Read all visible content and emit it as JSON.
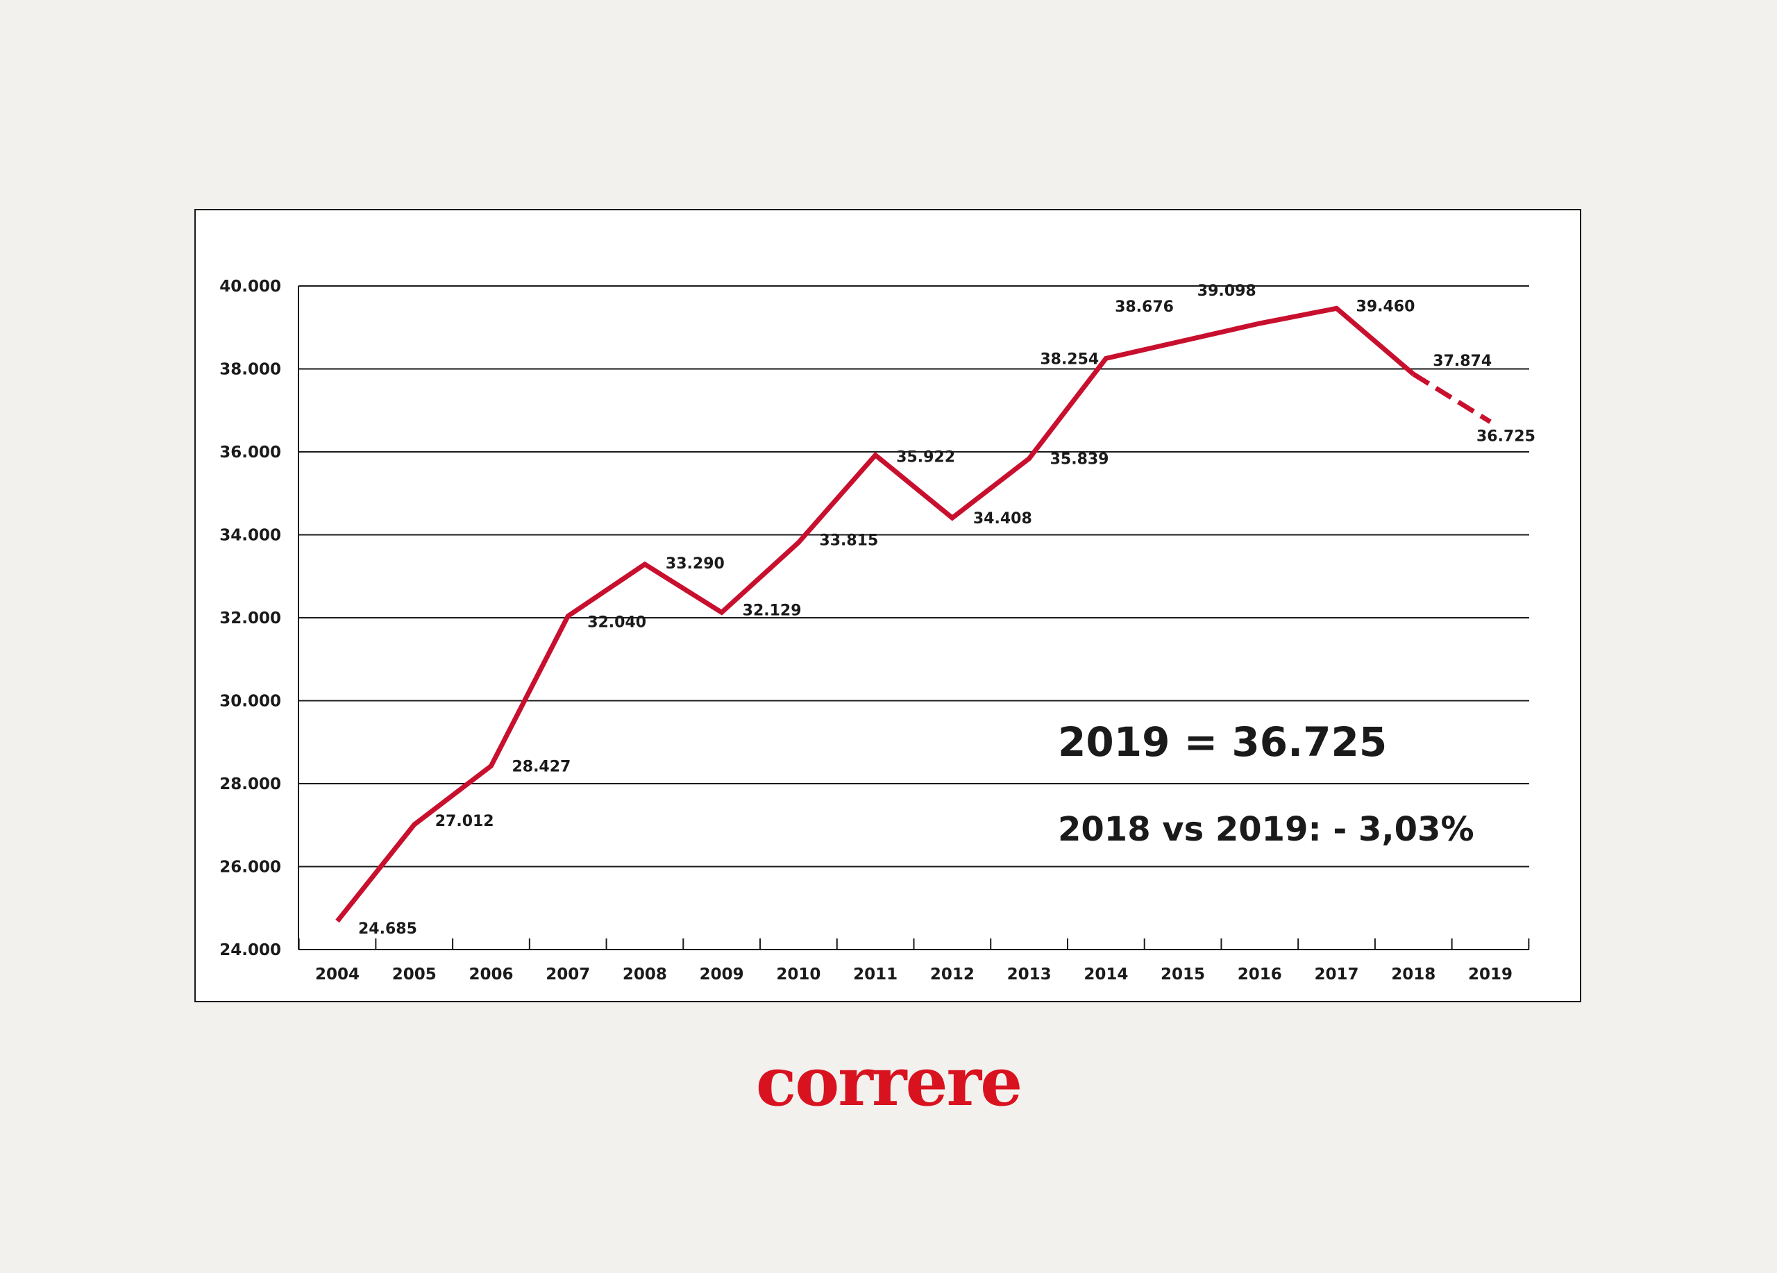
{
  "chart_data": {
    "type": "line",
    "title": "",
    "xlabel": "",
    "ylabel": "",
    "categories": [
      "2004",
      "2005",
      "2006",
      "2007",
      "2008",
      "2009",
      "2010",
      "2011",
      "2012",
      "2013",
      "2014",
      "2015",
      "2016",
      "2017",
      "2018",
      "2019"
    ],
    "series": [
      {
        "values": [
          24685,
          27012,
          28427,
          32040,
          33290,
          32129,
          33815,
          35922,
          34408,
          35839,
          38254,
          38676,
          39098,
          39460,
          37874,
          36725
        ],
        "data_labels": [
          "24.685",
          "27.012",
          "28.427",
          "32.040",
          "33.290",
          "32.129",
          "33.815",
          "35.922",
          "34.408",
          "35.839",
          "38.254",
          "38.676",
          "39.098",
          "39.460",
          "37.874",
          "36.725"
        ],
        "dashed_from_index": 14
      }
    ],
    "ylim": [
      24000,
      40000
    ],
    "yticks": [
      24000,
      26000,
      28000,
      30000,
      32000,
      34000,
      36000,
      38000,
      40000
    ],
    "ytick_labels": [
      "24.000",
      "26.000",
      "28.000",
      "30.000",
      "32.000",
      "34.000",
      "36.000",
      "38.000",
      "40.000"
    ],
    "grid": "horizontal",
    "legend": "none",
    "annotations": {
      "main": "2019 = 36.725",
      "sub": "2018 vs 2019: - 3,03%"
    }
  },
  "colors": {
    "line": "#c8102e",
    "background": "#f2f1ee",
    "panel": "#ffffff",
    "text": "#1a1a1a",
    "logo": "#d9121f"
  },
  "logo": {
    "text": "correre"
  }
}
